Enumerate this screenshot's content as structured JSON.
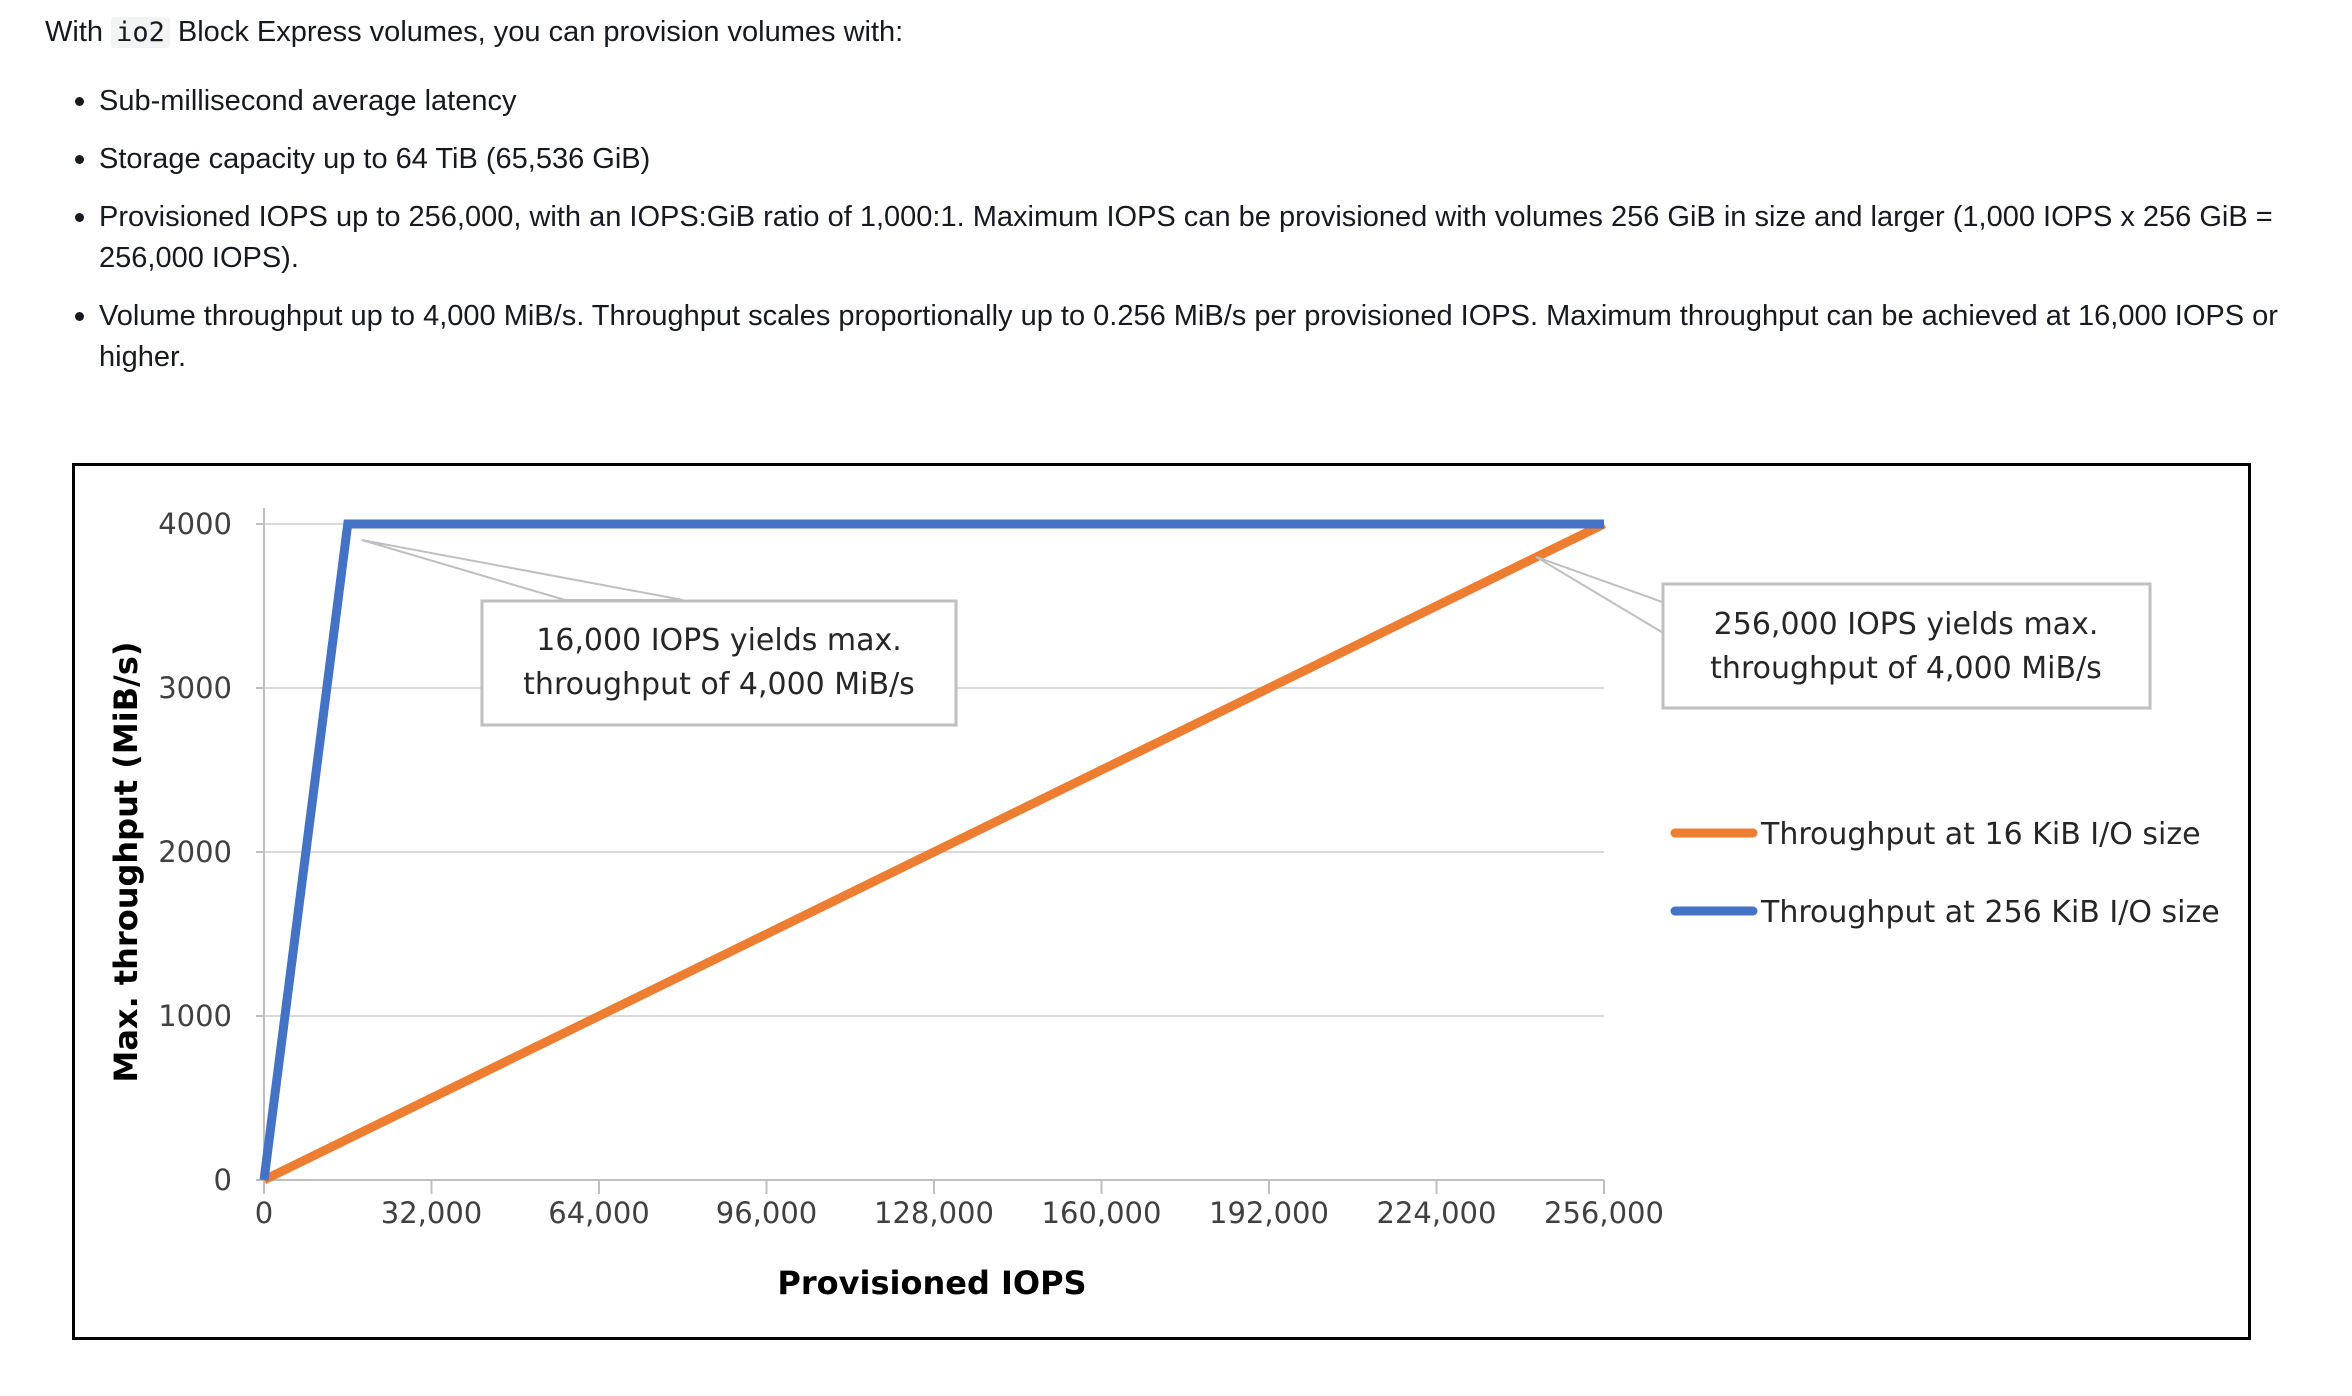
{
  "intro": {
    "prefix": "With ",
    "code": "io2",
    "suffix": " Block Express volumes, you can provision volumes with:"
  },
  "bullets": [
    "Sub-millisecond average latency",
    "Storage capacity up to 64 TiB (65,536 GiB)",
    "Provisioned IOPS up to 256,000, with an IOPS:GiB ratio of 1,000:1. Maximum IOPS can be provisioned with volumes 256 GiB in size and larger (1,000 IOPS x 256 GiB = 256,000 IOPS).",
    "Volume throughput up to 4,000 MiB/s. Throughput scales proportionally up to 0.256 MiB/s per provisioned IOPS. Maximum throughput can be achieved at 16,000 IOPS or higher."
  ],
  "chart_data": {
    "type": "line",
    "xlabel": "Provisioned IOPS",
    "ylabel": "Max. throughput (MiB/s)",
    "xlim": [
      0,
      256000
    ],
    "ylim": [
      0,
      4000
    ],
    "x_ticks": [
      0,
      32000,
      64000,
      96000,
      128000,
      160000,
      192000,
      224000,
      256000
    ],
    "x_tick_labels": [
      "0",
      "32,000",
      "64,000",
      "96,000",
      "128,000",
      "160,000",
      "192,000",
      "224,000",
      "256,000"
    ],
    "y_ticks": [
      0,
      1000,
      2000,
      3000,
      4000
    ],
    "y_tick_labels": [
      "0",
      "1000",
      "2000",
      "3000",
      "4000"
    ],
    "grid": true,
    "legend_position": "right",
    "series": [
      {
        "name": "Throughput at 16 KiB I/O size",
        "color": "#ed7d31",
        "x": [
          0,
          256000
        ],
        "y": [
          0,
          4000
        ]
      },
      {
        "name": "Throughput at 256 KiB I/O size",
        "color": "#4472c4",
        "x": [
          0,
          16000,
          256000
        ],
        "y": [
          0,
          4000,
          4000
        ]
      }
    ],
    "annotations": [
      {
        "lines": [
          "16,000 IOPS yields max.",
          "throughput of 4,000 MiB/s"
        ],
        "x": 16000,
        "y": 4000
      },
      {
        "lines": [
          "256,000 IOPS yields max.",
          "throughput of 4,000 MiB/s"
        ],
        "x": 243000,
        "y": 3800
      }
    ]
  }
}
